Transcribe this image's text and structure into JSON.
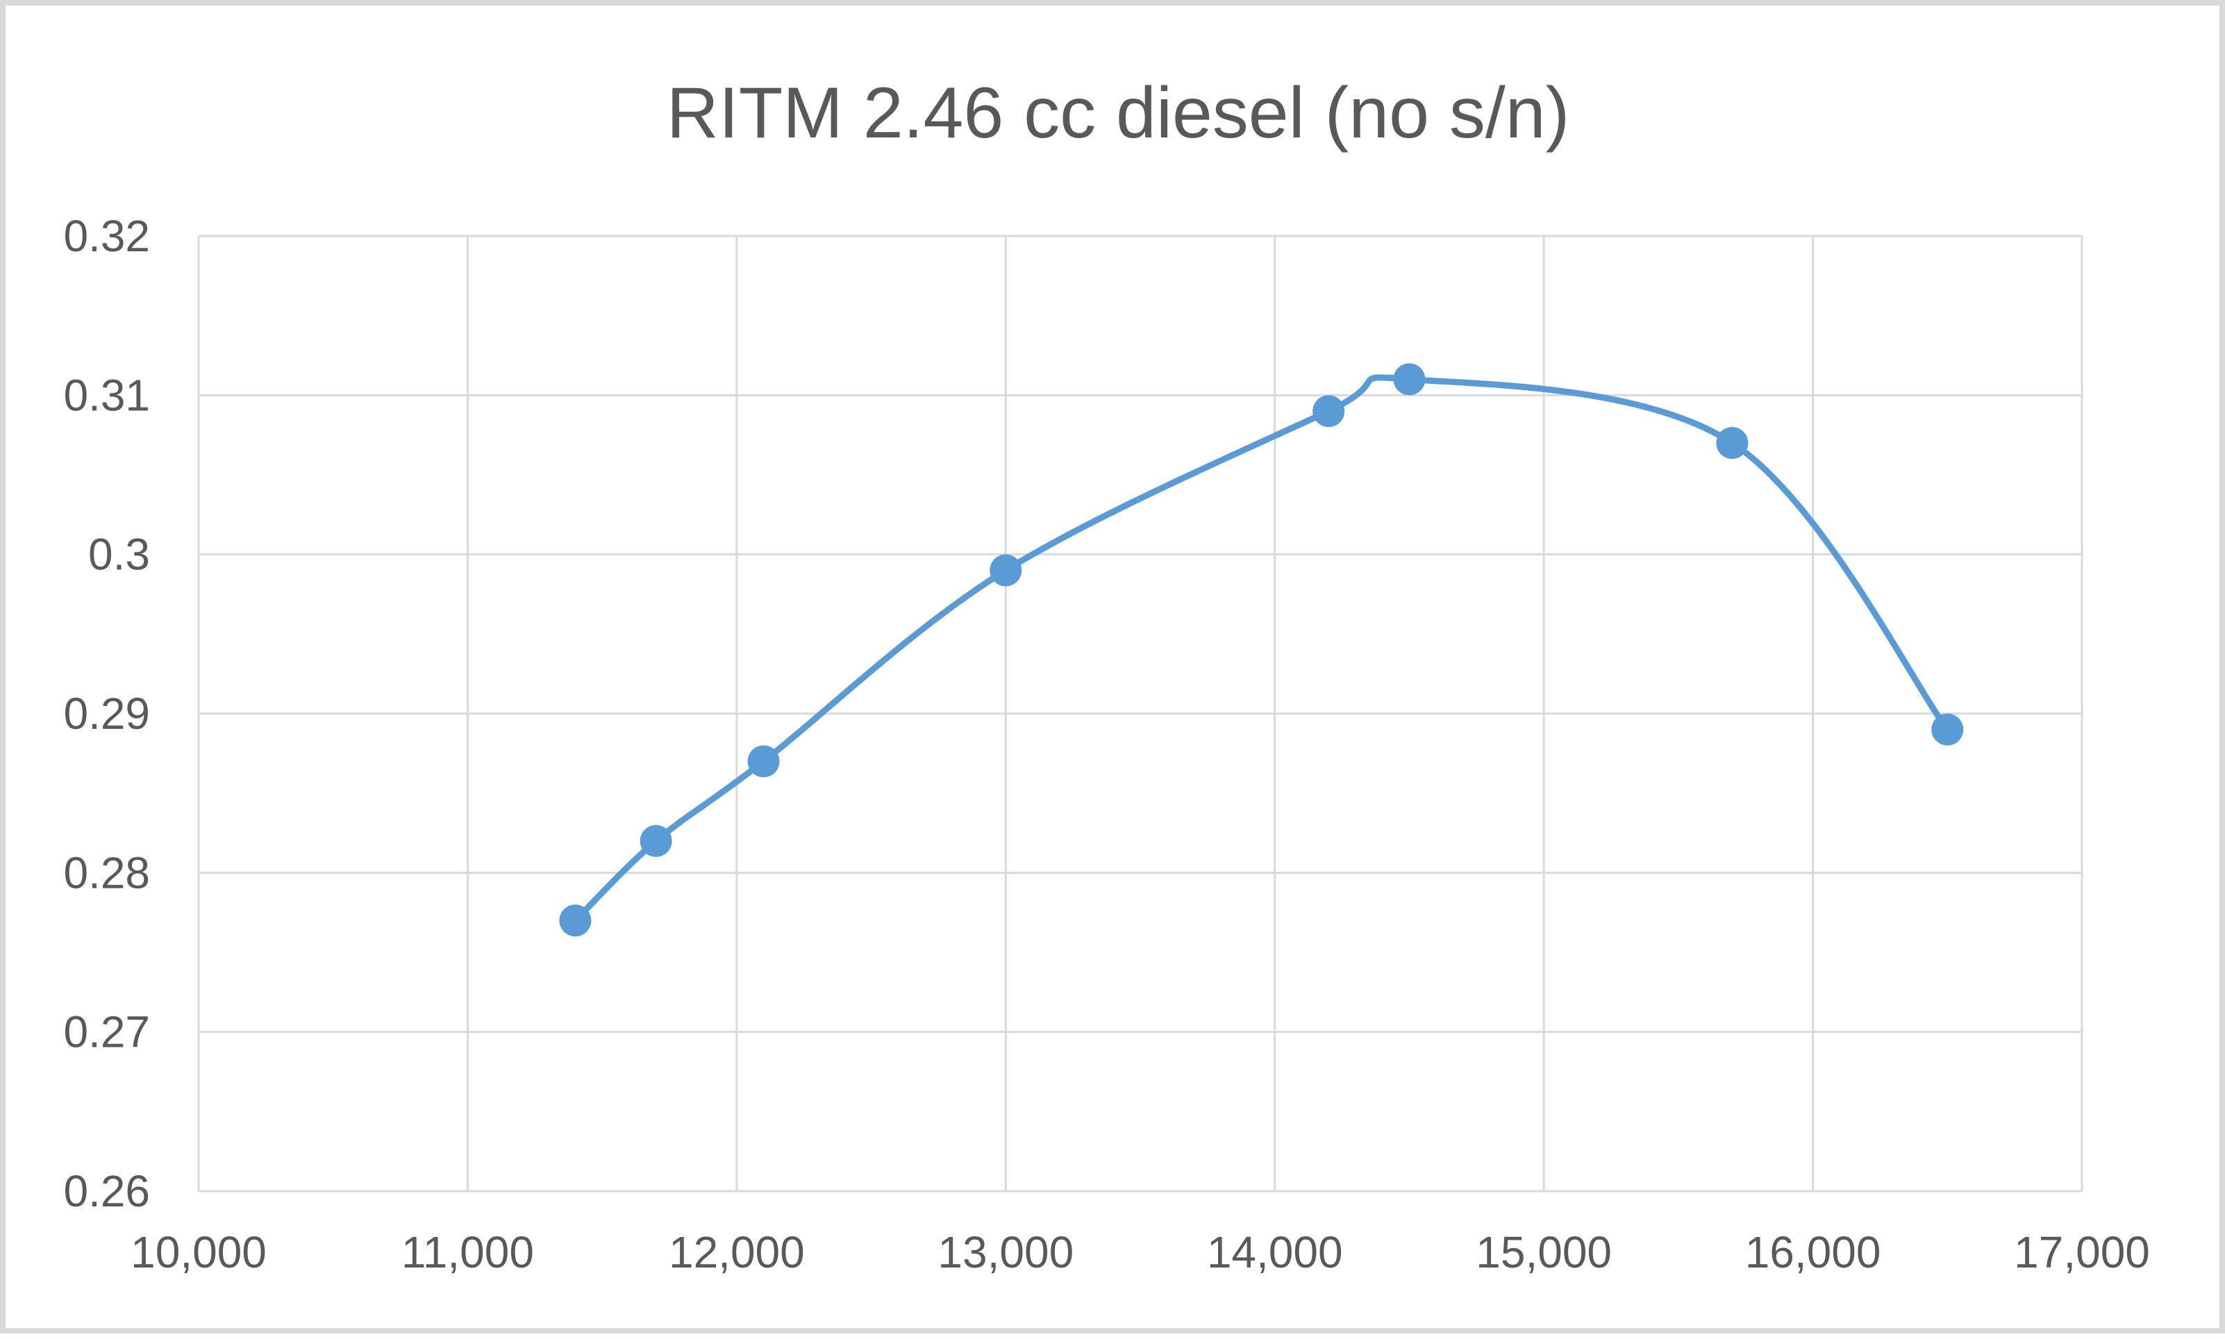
{
  "chart_data": {
    "type": "line",
    "title": "RITM 2.46 cc diesel (no s/n)",
    "xlabel": "",
    "ylabel": "",
    "xlim": [
      10000,
      17000
    ],
    "ylim": [
      0.26,
      0.32
    ],
    "x_ticks": [
      10000,
      11000,
      12000,
      13000,
      14000,
      15000,
      16000,
      17000
    ],
    "x_tick_labels": [
      "10,000",
      "11,000",
      "12,000",
      "13,000",
      "14,000",
      "15,000",
      "16,000",
      "17,000"
    ],
    "y_ticks": [
      0.26,
      0.27,
      0.28,
      0.29,
      0.3,
      0.31,
      0.32
    ],
    "y_tick_labels": [
      "0.26",
      "0.27",
      "0.28",
      "0.29",
      "0.3",
      "0.31",
      "0.32"
    ],
    "grid": true,
    "legend": "none",
    "smooth": true,
    "series": [
      {
        "color": "#5b9bd5",
        "marker": "circle",
        "x": [
          11400,
          11700,
          12100,
          13000,
          14200,
          14500,
          15700,
          16500
        ],
        "y": [
          0.277,
          0.282,
          0.287,
          0.299,
          0.309,
          0.311,
          0.307,
          0.289
        ]
      }
    ]
  },
  "colors": {
    "series": "#5b9bd5",
    "grid": "#d9d9d9",
    "text": "#595959",
    "frame": "#d9d9d9"
  }
}
